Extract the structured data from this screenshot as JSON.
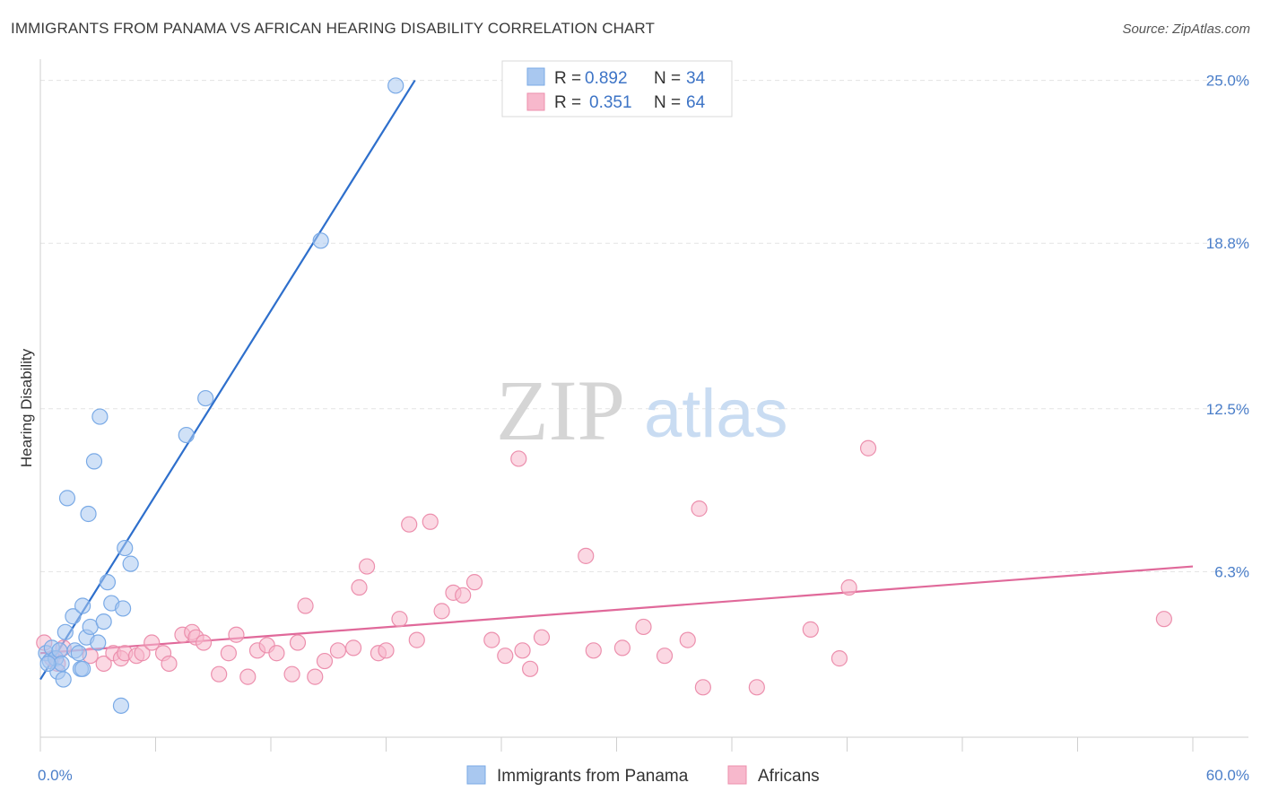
{
  "title": "IMMIGRANTS FROM PANAMA VS AFRICAN HEARING DISABILITY CORRELATION CHART",
  "source": "Source: ZipAtlas.com",
  "watermark": {
    "zip": "ZIP",
    "atlas": "atlas"
  },
  "colors": {
    "blue_fill": "#a9c8f0",
    "blue_stroke": "#7aaae6",
    "blue_line": "#2e6fcc",
    "pink_fill": "#f7b8cc",
    "pink_stroke": "#ec8fad",
    "pink_line": "#e0699a",
    "tick_text": "#4a7ec9",
    "grid": "#e3e3e3"
  },
  "legend": {
    "rows": [
      {
        "r_label": "R =",
        "r_value": "0.892",
        "n_label": "N =",
        "n_value": "34"
      },
      {
        "r_label": "R =",
        "r_value": "0.351",
        "n_label": "N =",
        "n_value": "64"
      }
    ]
  },
  "chart_data": {
    "type": "scatter",
    "title": "IMMIGRANTS FROM PANAMA VS AFRICAN HEARING DISABILITY CORRELATION CHART",
    "xlabel": "",
    "ylabel": "Hearing Disability",
    "xlim": [
      0,
      60
    ],
    "ylim": [
      0,
      25.6
    ],
    "x_tick_labels": [
      "0.0%",
      "60.0%"
    ],
    "y_ticks": [
      6.3,
      12.5,
      18.8,
      25.0
    ],
    "y_tick_labels": [
      "6.3%",
      "12.5%",
      "18.8%",
      "25.0%"
    ],
    "grid": true,
    "legend_position": "top-center",
    "series": [
      {
        "name": "Immigrants from Panama",
        "color": "#a9c8f0",
        "r": 0.892,
        "n": 34,
        "trendline": [
          [
            0,
            2.2
          ],
          [
            19.5,
            25.0
          ]
        ],
        "points": [
          [
            0.3,
            3.2
          ],
          [
            0.5,
            2.9
          ],
          [
            0.6,
            3.4
          ],
          [
            0.8,
            3.0
          ],
          [
            0.9,
            2.5
          ],
          [
            1.0,
            3.3
          ],
          [
            1.1,
            2.8
          ],
          [
            1.2,
            2.2
          ],
          [
            1.3,
            4.0
          ],
          [
            1.4,
            9.1
          ],
          [
            1.7,
            4.6
          ],
          [
            1.8,
            3.3
          ],
          [
            2.0,
            3.2
          ],
          [
            2.1,
            2.6
          ],
          [
            2.2,
            2.6
          ],
          [
            2.2,
            5.0
          ],
          [
            2.4,
            3.8
          ],
          [
            2.5,
            8.5
          ],
          [
            2.6,
            4.2
          ],
          [
            2.8,
            10.5
          ],
          [
            3.0,
            3.6
          ],
          [
            3.1,
            12.2
          ],
          [
            3.3,
            4.4
          ],
          [
            3.5,
            5.9
          ],
          [
            3.7,
            5.1
          ],
          [
            4.2,
            1.2
          ],
          [
            4.3,
            4.9
          ],
          [
            4.4,
            7.2
          ],
          [
            4.7,
            6.6
          ],
          [
            7.6,
            11.5
          ],
          [
            8.6,
            12.9
          ],
          [
            14.6,
            18.9
          ],
          [
            18.5,
            24.8
          ],
          [
            0.4,
            2.8
          ]
        ]
      },
      {
        "name": "Africans",
        "color": "#f7b8cc",
        "r": 0.351,
        "n": 64,
        "trendline": [
          [
            0,
            3.2
          ],
          [
            60,
            6.5
          ]
        ],
        "points": [
          [
            0.2,
            3.6
          ],
          [
            0.6,
            3.0
          ],
          [
            0.9,
            2.8
          ],
          [
            1.2,
            3.4
          ],
          [
            2.6,
            3.1
          ],
          [
            3.3,
            2.8
          ],
          [
            3.8,
            3.2
          ],
          [
            4.2,
            3.0
          ],
          [
            4.4,
            3.2
          ],
          [
            5.0,
            3.1
          ],
          [
            5.3,
            3.2
          ],
          [
            5.8,
            3.6
          ],
          [
            6.4,
            3.2
          ],
          [
            6.7,
            2.8
          ],
          [
            7.4,
            3.9
          ],
          [
            7.9,
            4.0
          ],
          [
            8.1,
            3.8
          ],
          [
            8.5,
            3.6
          ],
          [
            9.3,
            2.4
          ],
          [
            9.8,
            3.2
          ],
          [
            10.2,
            3.9
          ],
          [
            10.8,
            2.3
          ],
          [
            11.3,
            3.3
          ],
          [
            11.8,
            3.5
          ],
          [
            12.3,
            3.2
          ],
          [
            13.1,
            2.4
          ],
          [
            13.4,
            3.6
          ],
          [
            13.8,
            5.0
          ],
          [
            14.3,
            2.3
          ],
          [
            14.8,
            2.9
          ],
          [
            15.5,
            3.3
          ],
          [
            16.3,
            3.4
          ],
          [
            16.6,
            5.7
          ],
          [
            17.0,
            6.5
          ],
          [
            17.6,
            3.2
          ],
          [
            18.0,
            3.3
          ],
          [
            18.7,
            4.5
          ],
          [
            19.2,
            8.1
          ],
          [
            19.6,
            3.7
          ],
          [
            20.3,
            8.2
          ],
          [
            20.9,
            4.8
          ],
          [
            21.5,
            5.5
          ],
          [
            22.0,
            5.4
          ],
          [
            22.6,
            5.9
          ],
          [
            24.2,
            3.1
          ],
          [
            24.9,
            10.6
          ],
          [
            25.1,
            3.3
          ],
          [
            25.5,
            2.6
          ],
          [
            26.1,
            3.8
          ],
          [
            28.4,
            6.9
          ],
          [
            28.8,
            3.3
          ],
          [
            30.3,
            3.4
          ],
          [
            31.4,
            4.2
          ],
          [
            32.5,
            3.1
          ],
          [
            33.7,
            3.7
          ],
          [
            34.3,
            8.7
          ],
          [
            34.5,
            1.9
          ],
          [
            37.3,
            1.9
          ],
          [
            40.1,
            4.1
          ],
          [
            41.6,
            3.0
          ],
          [
            42.1,
            5.7
          ],
          [
            43.1,
            11.0
          ],
          [
            58.5,
            4.5
          ],
          [
            23.5,
            3.7
          ]
        ]
      }
    ]
  }
}
